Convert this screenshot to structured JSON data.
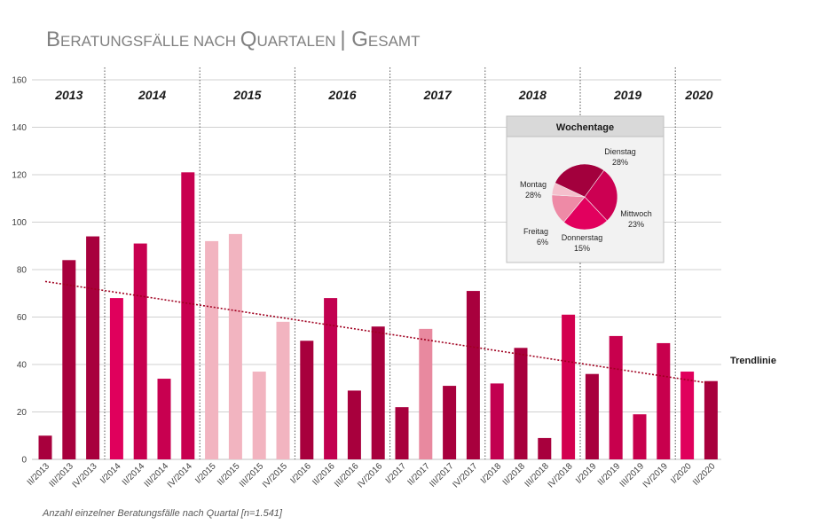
{
  "chart_data": {
    "type": "bar",
    "title_parts": [
      {
        "big": "B",
        "small": "ERATUNGSFÄLLE NACH "
      },
      {
        "big": "Q",
        "small": "UARTALEN "
      },
      {
        "big": "| G",
        "small": "ESAMT"
      }
    ],
    "ylim": [
      0,
      160
    ],
    "yticks": [
      0,
      20,
      40,
      60,
      80,
      100,
      120,
      140,
      160
    ],
    "grid": true,
    "categories": [
      "II/2013",
      "III/2013",
      "IV/2013",
      "I/2014",
      "II/2014",
      "III/2014",
      "IV/2014",
      "I/2015",
      "II/2015",
      "III/2015",
      "IV/2015",
      "I/2016",
      "II/2016",
      "III/2016",
      "IV/2016",
      "I/2017",
      "II/2017",
      "III/2017",
      "IV/2017",
      "I/2018",
      "II/2018",
      "III/2018",
      "IV/2018",
      "I/2019",
      "II/2019",
      "III/2019",
      "IV/2019",
      "I/2020",
      "II/2020"
    ],
    "values": [
      10,
      84,
      94,
      68,
      91,
      34,
      121,
      92,
      95,
      37,
      58,
      50,
      68,
      29,
      56,
      22,
      55,
      31,
      71,
      32,
      47,
      9,
      61,
      36,
      52,
      19,
      49,
      37,
      33
    ],
    "colors": [
      "#a8003d",
      "#a8003d",
      "#a8003d",
      "#e0005c",
      "#c80050",
      "#c80050",
      "#c80050",
      "#f2b4c0",
      "#f2b4c0",
      "#f2b4c0",
      "#f2b4c0",
      "#a8003d",
      "#c20050",
      "#a8003d",
      "#a8003d",
      "#a8003d",
      "#e8899f",
      "#a8003d",
      "#a8003d",
      "#c20050",
      "#a8003d",
      "#a8003d",
      "#d3004f",
      "#a8003d",
      "#c8004d",
      "#c8004d",
      "#c8004d",
      "#e0005c",
      "#a8003d"
    ],
    "years": [
      {
        "label": "2013",
        "start": 0,
        "end": 2
      },
      {
        "label": "2014",
        "start": 3,
        "end": 6
      },
      {
        "label": "2015",
        "start": 7,
        "end": 10
      },
      {
        "label": "2016",
        "start": 11,
        "end": 14
      },
      {
        "label": "2017",
        "start": 15,
        "end": 18
      },
      {
        "label": "2018",
        "start": 19,
        "end": 22
      },
      {
        "label": "2019",
        "start": 23,
        "end": 26
      },
      {
        "label": "2020",
        "start": 27,
        "end": 28
      }
    ],
    "trendline": {
      "label": "Trendlinie",
      "start": 75,
      "end": 32,
      "color": "#a00020"
    },
    "note": "Anzahl einzelner Beratungsfälle nach Quartal [n=1.541]",
    "inset_pie": {
      "title": "Wochentage",
      "slices": [
        {
          "name": "Dienstag",
          "pct": "28%",
          "value": 28,
          "color": "#cc0052"
        },
        {
          "name": "Mittwoch",
          "pct": "23%",
          "value": 23,
          "color": "#e2005e"
        },
        {
          "name": "Donnerstag",
          "pct": "15%",
          "value": 15,
          "color": "#ee8aa6"
        },
        {
          "name": "Freitag",
          "pct": "6%",
          "value": 6,
          "color": "#f5bfcc"
        },
        {
          "name": "Montag",
          "pct": "28%",
          "value": 28,
          "color": "#a3003d"
        }
      ]
    }
  }
}
